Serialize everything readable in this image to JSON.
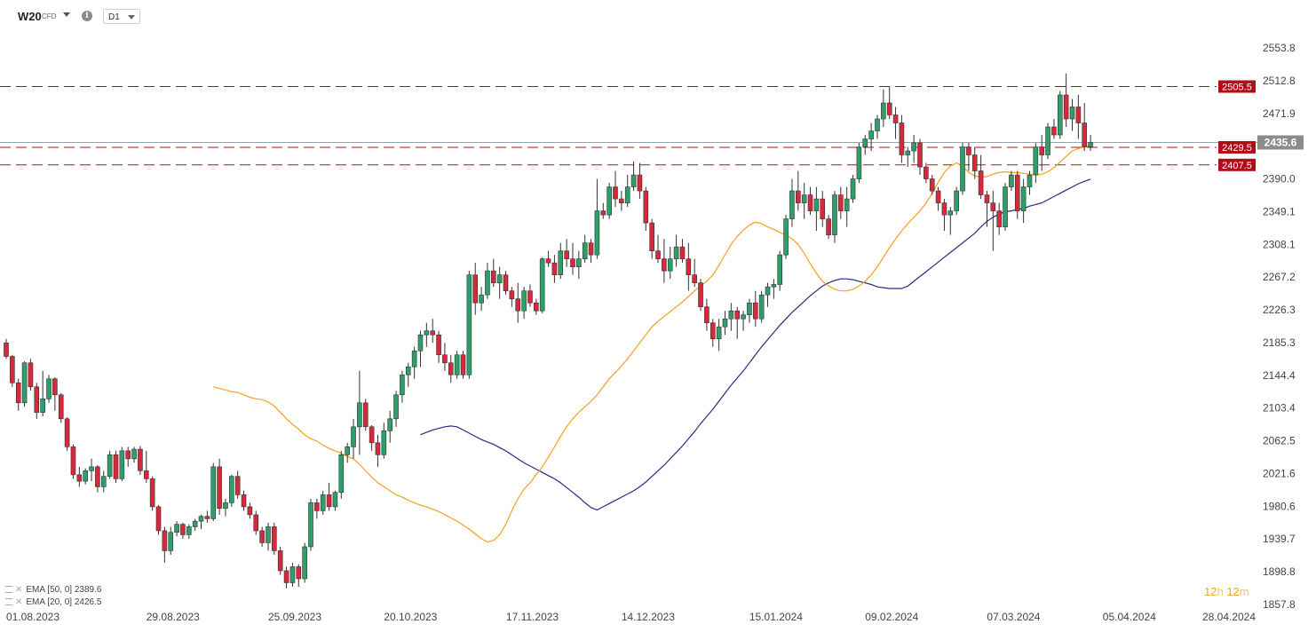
{
  "toolbar": {
    "symbol": "W20",
    "symbol_type": "CFD",
    "timeframe": "D1"
  },
  "indicators": [
    {
      "label": "EMA  [50, 0]  2389.6",
      "color": "#2c2a7a"
    },
    {
      "label": "EMA  [20, 0]  2426.5",
      "color": "#f2a21b"
    }
  ],
  "countdown": {
    "hours": "12",
    "h": "h",
    "minutes": "12",
    "m": "m"
  },
  "chart_data": {
    "type": "candlestick",
    "ylim": [
      1857.8,
      2553.8
    ],
    "y_ticks": [
      2553.8,
      2512.8,
      2471.9,
      2390.0,
      2349.1,
      2308.1,
      2267.2,
      2226.3,
      2185.3,
      2144.4,
      2103.4,
      2062.5,
      2021.6,
      1980.6,
      1939.7,
      1898.8,
      1857.8
    ],
    "x_ticks": [
      "01.08.2023",
      "29.08.2023",
      "25.09.2023",
      "20.10.2023",
      "17.11.2023",
      "14.12.2023",
      "15.01.2024",
      "09.02.2024",
      "07.03.2024",
      "05.04.2024",
      "28.04.2024"
    ],
    "last_price": 2435.6,
    "last_price_color": "#8c8c8c",
    "up_color": "#2e9e6b",
    "down_color": "#d8283b",
    "levels": [
      {
        "label": "2505.5",
        "value": 2505.5,
        "color": "#b00f1a"
      },
      {
        "label": "2429.5",
        "value": 2429.5,
        "color": "#b00f1a"
      },
      {
        "label": "2407.5",
        "value": 2407.5,
        "color": "#b00f1a"
      }
    ],
    "candles": [
      [
        2185,
        2190,
        2165,
        2168
      ],
      [
        2168,
        2170,
        2130,
        2135
      ],
      [
        2135,
        2140,
        2100,
        2110
      ],
      [
        2110,
        2162,
        2105,
        2160
      ],
      [
        2160,
        2165,
        2125,
        2130
      ],
      [
        2130,
        2135,
        2090,
        2098
      ],
      [
        2098,
        2150,
        2093,
        2115
      ],
      [
        2115,
        2145,
        2110,
        2140
      ],
      [
        2140,
        2142,
        2100,
        2120
      ],
      [
        2120,
        2122,
        2085,
        2090
      ],
      [
        2090,
        2092,
        2050,
        2055
      ],
      [
        2055,
        2058,
        2015,
        2020
      ],
      [
        2020,
        2030,
        2005,
        2012
      ],
      [
        2012,
        2028,
        2008,
        2025
      ],
      [
        2025,
        2040,
        2012,
        2030
      ],
      [
        2030,
        2032,
        1998,
        2005
      ],
      [
        2005,
        2025,
        1998,
        2018
      ],
      [
        2018,
        2050,
        2015,
        2045
      ],
      [
        2045,
        2050,
        2010,
        2015
      ],
      [
        2015,
        2055,
        2012,
        2050
      ],
      [
        2050,
        2055,
        2030,
        2040
      ],
      [
        2040,
        2055,
        2035,
        2052
      ],
      [
        2052,
        2056,
        2020,
        2025
      ],
      [
        2025,
        2050,
        2010,
        2015
      ],
      [
        2015,
        2018,
        1975,
        1980
      ],
      [
        1980,
        1982,
        1945,
        1950
      ],
      [
        1950,
        1955,
        1910,
        1925
      ],
      [
        1925,
        1955,
        1920,
        1948
      ],
      [
        1948,
        1962,
        1943,
        1958
      ],
      [
        1958,
        1960,
        1940,
        1945
      ],
      [
        1945,
        1958,
        1940,
        1955
      ],
      [
        1955,
        1965,
        1950,
        1962
      ],
      [
        1962,
        1970,
        1952,
        1968
      ],
      [
        1968,
        1975,
        1960,
        1965
      ],
      [
        1965,
        2035,
        1962,
        2030
      ],
      [
        2030,
        2040,
        1970,
        1978
      ],
      [
        1978,
        1990,
        1968,
        1985
      ],
      [
        1985,
        2020,
        1980,
        2018
      ],
      [
        2018,
        2025,
        1990,
        1995
      ],
      [
        1995,
        2000,
        1975,
        1980
      ],
      [
        1980,
        1985,
        1965,
        1970
      ],
      [
        1970,
        1975,
        1945,
        1950
      ],
      [
        1950,
        1955,
        1930,
        1935
      ],
      [
        1935,
        1960,
        1925,
        1955
      ],
      [
        1955,
        1960,
        1920,
        1925
      ],
      [
        1925,
        1930,
        1895,
        1900
      ],
      [
        1900,
        1905,
        1878,
        1885
      ],
      [
        1885,
        1910,
        1880,
        1905
      ],
      [
        1905,
        1908,
        1880,
        1890
      ],
      [
        1890,
        1935,
        1885,
        1930
      ],
      [
        1930,
        1990,
        1925,
        1985
      ],
      [
        1985,
        1990,
        1965,
        1975
      ],
      [
        1975,
        2000,
        1970,
        1995
      ],
      [
        1995,
        2010,
        1975,
        1980
      ],
      [
        1980,
        2000,
        1975,
        1998
      ],
      [
        1998,
        2050,
        1990,
        2045
      ],
      [
        2045,
        2060,
        2035,
        2055
      ],
      [
        2055,
        2090,
        2040,
        2080
      ],
      [
        2080,
        2150,
        2045,
        2110
      ],
      [
        2110,
        2115,
        2075,
        2080
      ],
      [
        2080,
        2082,
        2050,
        2060
      ],
      [
        2060,
        2070,
        2030,
        2045
      ],
      [
        2045,
        2085,
        2040,
        2075
      ],
      [
        2075,
        2100,
        2060,
        2090
      ],
      [
        2090,
        2125,
        2080,
        2120
      ],
      [
        2120,
        2150,
        2110,
        2145
      ],
      [
        2145,
        2160,
        2130,
        2155
      ],
      [
        2155,
        2180,
        2140,
        2175
      ],
      [
        2175,
        2200,
        2155,
        2195
      ],
      [
        2195,
        2210,
        2180,
        2200
      ],
      [
        2200,
        2215,
        2185,
        2195
      ],
      [
        2195,
        2200,
        2160,
        2170
      ],
      [
        2170,
        2185,
        2150,
        2160
      ],
      [
        2160,
        2170,
        2135,
        2145
      ],
      [
        2145,
        2175,
        2140,
        2170
      ],
      [
        2170,
        2175,
        2140,
        2145
      ],
      [
        2145,
        2275,
        2140,
        2270
      ],
      [
        2270,
        2285,
        2220,
        2235
      ],
      [
        2235,
        2255,
        2225,
        2245
      ],
      [
        2245,
        2285,
        2240,
        2275
      ],
      [
        2275,
        2290,
        2255,
        2260
      ],
      [
        2260,
        2280,
        2240,
        2270
      ],
      [
        2270,
        2275,
        2245,
        2250
      ],
      [
        2250,
        2255,
        2230,
        2240
      ],
      [
        2240,
        2260,
        2210,
        2225
      ],
      [
        2225,
        2255,
        2215,
        2250
      ],
      [
        2250,
        2258,
        2230,
        2235
      ],
      [
        2235,
        2240,
        2220,
        2225
      ],
      [
        2225,
        2292,
        2222,
        2290
      ],
      [
        2290,
        2300,
        2280,
        2285
      ],
      [
        2285,
        2295,
        2260,
        2270
      ],
      [
        2270,
        2310,
        2265,
        2300
      ],
      [
        2300,
        2315,
        2280,
        2290
      ],
      [
        2290,
        2310,
        2270,
        2280
      ],
      [
        2280,
        2300,
        2265,
        2290
      ],
      [
        2290,
        2320,
        2285,
        2310
      ],
      [
        2310,
        2315,
        2285,
        2295
      ],
      [
        2295,
        2390,
        2290,
        2350
      ],
      [
        2350,
        2360,
        2340,
        2345
      ],
      [
        2345,
        2385,
        2340,
        2380
      ],
      [
        2380,
        2400,
        2355,
        2365
      ],
      [
        2365,
        2375,
        2350,
        2360
      ],
      [
        2360,
        2395,
        2355,
        2380
      ],
      [
        2380,
        2412,
        2375,
        2395
      ],
      [
        2395,
        2410,
        2365,
        2375
      ],
      [
        2375,
        2380,
        2325,
        2335
      ],
      [
        2335,
        2340,
        2290,
        2300
      ],
      [
        2300,
        2320,
        2285,
        2290
      ],
      [
        2290,
        2315,
        2260,
        2275
      ],
      [
        2275,
        2305,
        2265,
        2290
      ],
      [
        2290,
        2320,
        2280,
        2305
      ],
      [
        2305,
        2315,
        2285,
        2290
      ],
      [
        2290,
        2310,
        2250,
        2270
      ],
      [
        2270,
        2290,
        2255,
        2260
      ],
      [
        2260,
        2265,
        2225,
        2230
      ],
      [
        2230,
        2240,
        2200,
        2210
      ],
      [
        2210,
        2215,
        2180,
        2190
      ],
      [
        2190,
        2215,
        2175,
        2205
      ],
      [
        2205,
        2225,
        2195,
        2215
      ],
      [
        2215,
        2235,
        2200,
        2225
      ],
      [
        2225,
        2230,
        2190,
        2215
      ],
      [
        2215,
        2225,
        2200,
        2220
      ],
      [
        2220,
        2240,
        2210,
        2235
      ],
      [
        2235,
        2250,
        2205,
        2215
      ],
      [
        2215,
        2250,
        2210,
        2245
      ],
      [
        2245,
        2260,
        2230,
        2255
      ],
      [
        2255,
        2265,
        2240,
        2258
      ],
      [
        2258,
        2300,
        2250,
        2295
      ],
      [
        2295,
        2345,
        2290,
        2340
      ],
      [
        2340,
        2390,
        2330,
        2375
      ],
      [
        2375,
        2400,
        2350,
        2360
      ],
      [
        2360,
        2385,
        2340,
        2370
      ],
      [
        2370,
        2380,
        2345,
        2350
      ],
      [
        2350,
        2380,
        2325,
        2365
      ],
      [
        2365,
        2375,
        2330,
        2340
      ],
      [
        2340,
        2345,
        2315,
        2320
      ],
      [
        2320,
        2375,
        2310,
        2370
      ],
      [
        2370,
        2380,
        2340,
        2350
      ],
      [
        2350,
        2380,
        2330,
        2365
      ],
      [
        2365,
        2395,
        2360,
        2390
      ],
      [
        2390,
        2435,
        2385,
        2430
      ],
      [
        2430,
        2445,
        2420,
        2440
      ],
      [
        2440,
        2460,
        2425,
        2450
      ],
      [
        2450,
        2470,
        2440,
        2465
      ],
      [
        2465,
        2502,
        2455,
        2485
      ],
      [
        2485,
        2505,
        2465,
        2470
      ],
      [
        2470,
        2480,
        2440,
        2460
      ],
      [
        2460,
        2470,
        2410,
        2420
      ],
      [
        2420,
        2430,
        2405,
        2425
      ],
      [
        2425,
        2445,
        2410,
        2435
      ],
      [
        2435,
        2440,
        2395,
        2405
      ],
      [
        2405,
        2410,
        2385,
        2390
      ],
      [
        2390,
        2395,
        2370,
        2375
      ],
      [
        2375,
        2380,
        2350,
        2360
      ],
      [
        2360,
        2365,
        2325,
        2345
      ],
      [
        2345,
        2355,
        2320,
        2350
      ],
      [
        2350,
        2380,
        2345,
        2375
      ],
      [
        2375,
        2435,
        2370,
        2430
      ],
      [
        2430,
        2435,
        2400,
        2420
      ],
      [
        2420,
        2430,
        2390,
        2400
      ],
      [
        2400,
        2420,
        2365,
        2370
      ],
      [
        2370,
        2375,
        2330,
        2360
      ],
      [
        2360,
        2375,
        2300,
        2350
      ],
      [
        2350,
        2360,
        2320,
        2330
      ],
      [
        2330,
        2385,
        2325,
        2380
      ],
      [
        2380,
        2400,
        2375,
        2395
      ],
      [
        2395,
        2400,
        2340,
        2350
      ],
      [
        2350,
        2390,
        2335,
        2380
      ],
      [
        2380,
        2400,
        2370,
        2395
      ],
      [
        2395,
        2435,
        2385,
        2430
      ],
      [
        2430,
        2445,
        2400,
        2420
      ],
      [
        2420,
        2460,
        2415,
        2455
      ],
      [
        2455,
        2465,
        2440,
        2445
      ],
      [
        2445,
        2500,
        2440,
        2495
      ],
      [
        2495,
        2522,
        2455,
        2465
      ],
      [
        2465,
        2490,
        2450,
        2480
      ],
      [
        2480,
        2495,
        2440,
        2460
      ],
      [
        2460,
        2485,
        2425,
        2430
      ],
      [
        2430,
        2445,
        2425,
        2435.6
      ]
    ],
    "ema20": [
      2130,
      2128,
      2126,
      2124,
      2123,
      2120,
      2117,
      2115,
      2114,
      2111,
      2106,
      2098,
      2090,
      2083,
      2077,
      2070,
      2065,
      2062,
      2057,
      2053,
      2050,
      2047,
      2043,
      2040,
      2033,
      2025,
      2017,
      2010,
      2005,
      2000,
      1995,
      1992,
      1988,
      1985,
      1982,
      1980,
      1977,
      1974,
      1970,
      1966,
      1962,
      1957,
      1952,
      1946,
      1940,
      1936,
      1938,
      1945,
      1958,
      1975,
      1990,
      2002,
      2010,
      2020,
      2030,
      2042,
      2055,
      2068,
      2080,
      2090,
      2098,
      2105,
      2112,
      2120,
      2130,
      2140,
      2148,
      2156,
      2165,
      2175,
      2185,
      2195,
      2205,
      2212,
      2218,
      2224,
      2230,
      2236,
      2243,
      2250,
      2256,
      2262,
      2270,
      2282,
      2295,
      2308,
      2318,
      2326,
      2332,
      2336,
      2334,
      2330,
      2327,
      2323,
      2320,
      2315,
      2308,
      2297,
      2284,
      2272,
      2262,
      2256,
      2252,
      2250,
      2250,
      2252,
      2256,
      2262,
      2270,
      2280,
      2292,
      2304,
      2315,
      2325,
      2334,
      2342,
      2350,
      2360,
      2372,
      2386,
      2398,
      2406,
      2410,
      2406,
      2398,
      2394,
      2392,
      2393,
      2396,
      2398,
      2399,
      2398,
      2398,
      2397,
      2396,
      2395,
      2396,
      2399,
      2404,
      2411,
      2418,
      2425,
      2428,
      2430,
      2432
    ],
    "ema50": [
      2070,
      2073,
      2076,
      2078,
      2080,
      2081,
      2080,
      2076,
      2072,
      2068,
      2064,
      2061,
      2058,
      2054,
      2050,
      2045,
      2040,
      2035,
      2031,
      2027,
      2023,
      2019,
      2015,
      2010,
      2004,
      1998,
      1992,
      1985,
      1979,
      1976,
      1980,
      1984,
      1988,
      1992,
      1996,
      2000,
      2005,
      2011,
      2018,
      2025,
      2032,
      2040,
      2048,
      2056,
      2065,
      2074,
      2084,
      2093,
      2102,
      2112,
      2122,
      2132,
      2141,
      2150,
      2160,
      2170,
      2180,
      2189,
      2198,
      2207,
      2215,
      2223,
      2230,
      2237,
      2244,
      2250,
      2256,
      2260,
      2263,
      2265,
      2265,
      2264,
      2262,
      2260,
      2258,
      2255,
      2254,
      2253,
      2253,
      2253,
      2256,
      2262,
      2268,
      2274,
      2280,
      2286,
      2292,
      2298,
      2304,
      2310,
      2316,
      2322,
      2330,
      2337,
      2342,
      2346,
      2349,
      2350,
      2352,
      2353,
      2356,
      2358,
      2360,
      2364,
      2368,
      2372,
      2376,
      2380,
      2384,
      2387,
      2389.6
    ]
  }
}
